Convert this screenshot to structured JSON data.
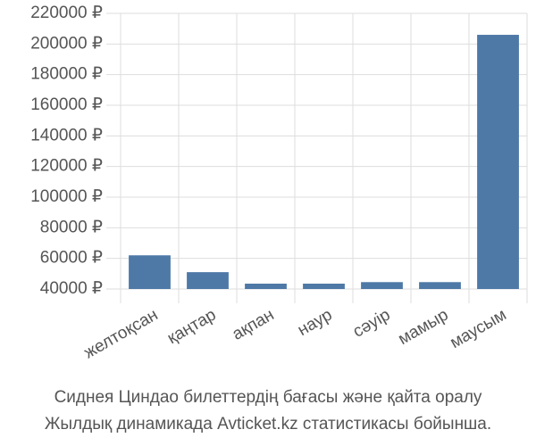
{
  "chart_data": {
    "type": "bar",
    "categories": [
      "желтоқсан",
      "қаңтар",
      "ақпан",
      "наур",
      "сәуір",
      "мамыр",
      "маусым"
    ],
    "values": [
      62000,
      51000,
      43500,
      43500,
      44500,
      44500,
      206000
    ],
    "color": "#4e79a7",
    "ylim": [
      40000,
      220000
    ],
    "yticks": [
      {
        "value": 40000,
        "label": "40000 ₽"
      },
      {
        "value": 60000,
        "label": "60000 ₽"
      },
      {
        "value": 80000,
        "label": "80000 ₽"
      },
      {
        "value": 100000,
        "label": "100000 ₽"
      },
      {
        "value": 120000,
        "label": "120000 ₽"
      },
      {
        "value": 140000,
        "label": "140000 ₽"
      },
      {
        "value": 160000,
        "label": "160000 ₽"
      },
      {
        "value": 180000,
        "label": "180000 ₽"
      },
      {
        "value": 200000,
        "label": "200000 ₽"
      },
      {
        "value": 220000,
        "label": "220000 ₽"
      }
    ],
    "grid": true,
    "caption": [
      "Сиднея Циндао билеттердің бағасы және қайта оралу",
      "Жылдық динамикада Avticket.kz статистикасы бойынша."
    ]
  }
}
